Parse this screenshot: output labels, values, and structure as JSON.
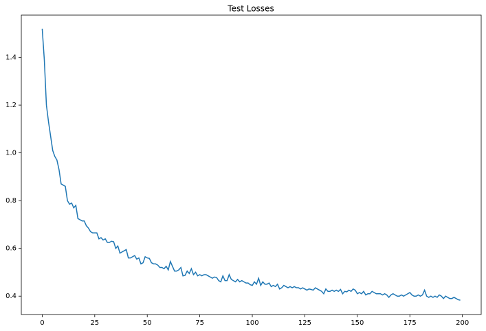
{
  "chart_data": {
    "type": "line",
    "title": "Test Losses",
    "x": [
      0,
      1,
      2,
      3,
      4,
      5,
      6,
      7,
      8,
      9,
      10,
      11,
      12,
      13,
      14,
      15,
      16,
      17,
      18,
      19,
      20,
      21,
      22,
      23,
      24,
      25,
      26,
      27,
      28,
      29,
      30,
      31,
      32,
      33,
      34,
      35,
      36,
      37,
      38,
      39,
      40,
      41,
      42,
      43,
      44,
      45,
      46,
      47,
      48,
      49,
      50,
      51,
      52,
      53,
      54,
      55,
      56,
      57,
      58,
      59,
      60,
      61,
      62,
      63,
      64,
      65,
      66,
      67,
      68,
      69,
      70,
      71,
      72,
      73,
      74,
      75,
      76,
      77,
      78,
      79,
      80,
      81,
      82,
      83,
      84,
      85,
      86,
      87,
      88,
      89,
      90,
      91,
      92,
      93,
      94,
      95,
      96,
      97,
      98,
      99,
      100,
      101,
      102,
      103,
      104,
      105,
      106,
      107,
      108,
      109,
      110,
      111,
      112,
      113,
      114,
      115,
      116,
      117,
      118,
      119,
      120,
      121,
      122,
      123,
      124,
      125,
      126,
      127,
      128,
      129,
      130,
      131,
      132,
      133,
      134,
      135,
      136,
      137,
      138,
      139,
      140,
      141,
      142,
      143,
      144,
      145,
      146,
      147,
      148,
      149,
      150,
      151,
      152,
      153,
      154,
      155,
      156,
      157,
      158,
      159,
      160,
      161,
      162,
      163,
      164,
      165,
      166,
      167,
      168,
      169,
      170,
      171,
      172,
      173,
      174,
      175,
      176,
      177,
      178,
      179,
      180,
      181,
      182,
      183,
      184,
      185,
      186,
      187,
      188,
      189,
      190,
      191,
      192,
      193,
      194,
      195,
      196,
      197,
      198,
      199
    ],
    "series": [
      {
        "color": "#1f77b4",
        "values": [
          1.52,
          1.39,
          1.2,
          1.13,
          1.07,
          1.01,
          0.985,
          0.97,
          0.93,
          0.87,
          0.865,
          0.86,
          0.8,
          0.785,
          0.79,
          0.77,
          0.78,
          0.725,
          0.72,
          0.715,
          0.715,
          0.695,
          0.685,
          0.67,
          0.665,
          0.665,
          0.665,
          0.64,
          0.645,
          0.635,
          0.64,
          0.625,
          0.625,
          0.63,
          0.628,
          0.6,
          0.61,
          0.58,
          0.585,
          0.59,
          0.595,
          0.56,
          0.56,
          0.565,
          0.57,
          0.555,
          0.56,
          0.535,
          0.54,
          0.565,
          0.56,
          0.558,
          0.54,
          0.535,
          0.535,
          0.53,
          0.52,
          0.52,
          0.515,
          0.525,
          0.51,
          0.545,
          0.525,
          0.505,
          0.505,
          0.51,
          0.52,
          0.485,
          0.487,
          0.505,
          0.495,
          0.515,
          0.49,
          0.5,
          0.485,
          0.49,
          0.485,
          0.49,
          0.49,
          0.485,
          0.48,
          0.475,
          0.48,
          0.478,
          0.465,
          0.46,
          0.485,
          0.465,
          0.465,
          0.49,
          0.47,
          0.465,
          0.46,
          0.47,
          0.46,
          0.465,
          0.46,
          0.455,
          0.455,
          0.448,
          0.445,
          0.46,
          0.45,
          0.475,
          0.445,
          0.46,
          0.45,
          0.45,
          0.455,
          0.44,
          0.445,
          0.44,
          0.45,
          0.43,
          0.435,
          0.445,
          0.44,
          0.435,
          0.44,
          0.435,
          0.44,
          0.435,
          0.435,
          0.43,
          0.435,
          0.43,
          0.425,
          0.43,
          0.428,
          0.425,
          0.435,
          0.43,
          0.425,
          0.42,
          0.41,
          0.43,
          0.42,
          0.42,
          0.425,
          0.42,
          0.425,
          0.42,
          0.428,
          0.41,
          0.42,
          0.418,
          0.425,
          0.42,
          0.43,
          0.425,
          0.41,
          0.415,
          0.41,
          0.42,
          0.405,
          0.41,
          0.41,
          0.42,
          0.415,
          0.41,
          0.41,
          0.41,
          0.405,
          0.41,
          0.405,
          0.395,
          0.405,
          0.41,
          0.405,
          0.4,
          0.4,
          0.405,
          0.4,
          0.405,
          0.41,
          0.415,
          0.405,
          0.4,
          0.4,
          0.405,
          0.4,
          0.405,
          0.425,
          0.4,
          0.395,
          0.4,
          0.395,
          0.4,
          0.395,
          0.405,
          0.4,
          0.39,
          0.4,
          0.395,
          0.39,
          0.39,
          0.395,
          0.39,
          0.385,
          0.383
        ]
      }
    ],
    "xlim": [
      -9.95,
      208.95
    ],
    "xticks": [
      0,
      25,
      50,
      75,
      100,
      125,
      150,
      175,
      200
    ],
    "ylim": [
      0.323,
      1.577
    ],
    "yticks": [
      0.4,
      0.6,
      0.8,
      {
        "value": 1,
        "label": "1.0"
      },
      1.2,
      1.4
    ]
  }
}
